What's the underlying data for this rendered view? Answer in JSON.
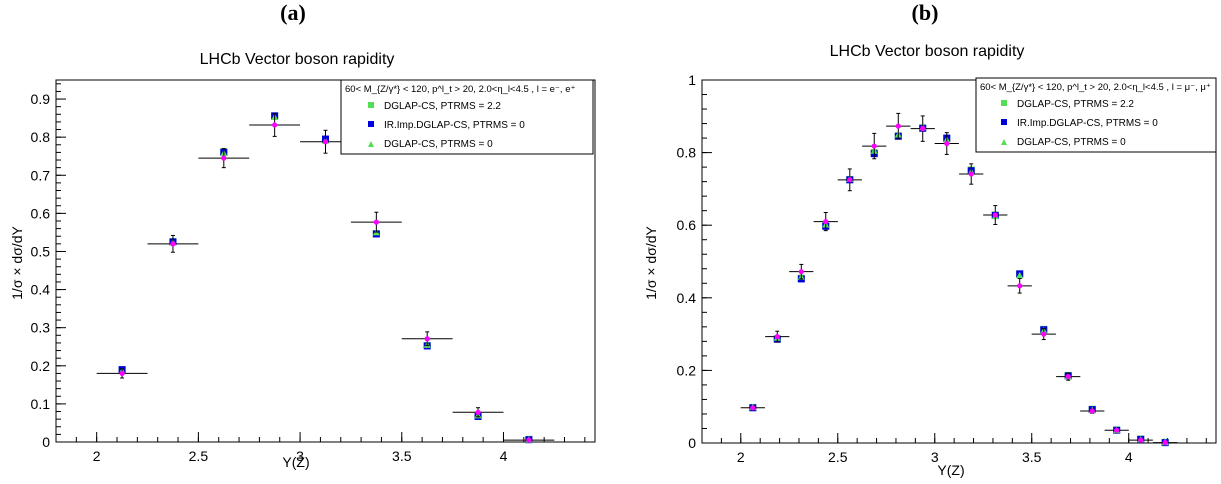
{
  "colors": {
    "data_marker": "#ff00ff",
    "dglap_ptrms22": "#55dd55",
    "ir_imp": "#0000dd",
    "dglap_ptrms0": "#55dd55",
    "axis": "#000000"
  },
  "chart_data": [
    {
      "type": "scatter",
      "panel_label": "(a)",
      "title": "LHCb Vector boson rapidity",
      "xlabel": "Y(Z)",
      "ylabel": "1/σ × dσ/dY",
      "xlim": [
        1.8,
        4.45
      ],
      "ylim": [
        0,
        0.95
      ],
      "xticks": [
        2,
        2.5,
        3,
        3.5,
        4
      ],
      "xticklabels": [
        "2",
        "2.5",
        "3",
        "3.5",
        "4"
      ],
      "yticks": [
        0,
        0.1,
        0.2,
        0.3,
        0.4,
        0.5,
        0.6,
        0.7,
        0.8,
        0.9
      ],
      "yticklabels": [
        "0",
        "0.1",
        "0.2",
        "0.3",
        "0.4",
        "0.5",
        "0.6",
        "0.7",
        "0.8",
        "0.9"
      ],
      "legend": {
        "header": "60< M_{Z/γ*} < 120, p^l_t > 20, 2.0<η_l<4.5 , l = e⁻, e⁺",
        "entries": [
          "DGLAP-CS, PTRMS = 2.2",
          "IR.Imp.DGLAP-CS, PTRMS = 0",
          "DGLAP-CS, PTRMS = 0"
        ],
        "placement": "top-right"
      },
      "data": {
        "x": [
          2.125,
          2.375,
          2.625,
          2.875,
          3.125,
          3.375,
          3.625,
          3.875,
          4.125
        ],
        "xerr": [
          0.125,
          0.125,
          0.125,
          0.125,
          0.125,
          0.125,
          0.125,
          0.125,
          0.125
        ],
        "y": [
          0.18,
          0.52,
          0.745,
          0.832,
          0.788,
          0.577,
          0.271,
          0.078,
          0.005
        ],
        "yerr": [
          0.012,
          0.022,
          0.025,
          0.03,
          0.03,
          0.026,
          0.018,
          0.012,
          0.003
        ]
      },
      "series": [
        {
          "name": "DGLAP-CS, PTRMS = 2.2",
          "marker": "square",
          "x": [
            2.125,
            2.375,
            2.625,
            2.875,
            3.125,
            3.375,
            3.625,
            3.875,
            4.125
          ],
          "y": [
            0.188,
            0.526,
            0.762,
            0.855,
            0.793,
            0.547,
            0.253,
            0.068,
            0.007
          ]
        },
        {
          "name": "IR.Imp.DGLAP-CS, PTRMS = 0",
          "marker": "square",
          "x": [
            2.125,
            2.375,
            2.625,
            2.875,
            3.125,
            3.375,
            3.625,
            3.875,
            4.125
          ],
          "y": [
            0.19,
            0.525,
            0.76,
            0.856,
            0.795,
            0.546,
            0.252,
            0.067,
            0.006
          ]
        },
        {
          "name": "DGLAP-CS, PTRMS = 0",
          "marker": "triangle",
          "x": [
            2.125,
            2.375,
            2.625,
            2.875,
            3.125,
            3.375,
            3.625,
            3.875,
            4.125
          ],
          "y": [
            0.186,
            0.524,
            0.758,
            0.853,
            0.791,
            0.55,
            0.255,
            0.07,
            0.006
          ]
        }
      ]
    },
    {
      "type": "scatter",
      "panel_label": "(b)",
      "title": "LHCb Vector boson rapidity",
      "xlabel": "Y(Z)",
      "ylabel": "1/σ × dσ/dY",
      "xlim": [
        1.8,
        4.45
      ],
      "ylim": [
        0,
        1.0
      ],
      "xticks": [
        2,
        2.5,
        3,
        3.5,
        4
      ],
      "xticklabels": [
        "2",
        "2.5",
        "3",
        "3.5",
        "4"
      ],
      "yticks": [
        0,
        0.2,
        0.4,
        0.6,
        0.8,
        1
      ],
      "yticklabels": [
        "0",
        "0.2",
        "0.4",
        "0.6",
        "0.8",
        "1"
      ],
      "legend": {
        "header": "60< M_{Z/γ*} < 120, p^l_t > 20, 2.0<η_l<4.5 , l = μ⁻, μ⁺",
        "entries": [
          "DGLAP-CS, PTRMS = 2.2",
          "IR.Imp.DGLAP-CS, PTRMS = 0",
          "DGLAP-CS, PTRMS = 0"
        ],
        "placement": "top-right"
      },
      "data": {
        "x": [
          2.062,
          2.188,
          2.312,
          2.438,
          2.562,
          2.688,
          2.812,
          2.938,
          3.062,
          3.188,
          3.312,
          3.438,
          3.562,
          3.688,
          3.812,
          3.938,
          4.062,
          4.188
        ],
        "xerr": [
          0.0625,
          0.0625,
          0.0625,
          0.0625,
          0.0625,
          0.0625,
          0.0625,
          0.0625,
          0.0625,
          0.0625,
          0.0625,
          0.0625,
          0.0625,
          0.0625,
          0.0625,
          0.0625,
          0.0625,
          0.0625
        ],
        "y": [
          0.097,
          0.293,
          0.472,
          0.61,
          0.725,
          0.818,
          0.873,
          0.866,
          0.825,
          0.741,
          0.628,
          0.433,
          0.3,
          0.183,
          0.088,
          0.035,
          0.008,
          0.001
        ],
        "yerr": [
          0.005,
          0.015,
          0.02,
          0.025,
          0.03,
          0.035,
          0.035,
          0.035,
          0.03,
          0.028,
          0.026,
          0.02,
          0.015,
          0.01,
          0.006,
          0.004,
          0.003,
          0.002
        ]
      },
      "series": [
        {
          "name": "DGLAP-CS, PTRMS = 2.2",
          "marker": "square",
          "x": [
            2.062,
            2.188,
            2.312,
            2.438,
            2.562,
            2.688,
            2.812,
            2.938,
            3.062,
            3.188,
            3.312,
            3.438,
            3.562,
            3.688,
            3.812,
            3.938,
            4.062,
            4.188
          ],
          "y": [
            0.098,
            0.287,
            0.454,
            0.598,
            0.726,
            0.8,
            0.846,
            0.868,
            0.838,
            0.752,
            0.628,
            0.465,
            0.313,
            0.186,
            0.093,
            0.036,
            0.011,
            0.002
          ]
        },
        {
          "name": "IR.Imp.DGLAP-CS, PTRMS = 0",
          "marker": "square",
          "x": [
            2.062,
            2.188,
            2.312,
            2.438,
            2.562,
            2.688,
            2.812,
            2.938,
            3.062,
            3.188,
            3.312,
            3.438,
            3.562,
            3.688,
            3.812,
            3.938,
            4.062,
            4.188
          ],
          "y": [
            0.097,
            0.286,
            0.452,
            0.597,
            0.725,
            0.797,
            0.845,
            0.867,
            0.84,
            0.75,
            0.627,
            0.466,
            0.312,
            0.185,
            0.092,
            0.035,
            0.01,
            0.001
          ]
        },
        {
          "name": "DGLAP-CS, PTRMS = 0",
          "marker": "triangle",
          "x": [
            2.062,
            2.188,
            2.312,
            2.438,
            2.562,
            2.688,
            2.812,
            2.938,
            3.062,
            3.188,
            3.312,
            3.438,
            3.562,
            3.688,
            3.812,
            3.938,
            4.062,
            4.188
          ],
          "y": [
            0.099,
            0.29,
            0.458,
            0.602,
            0.728,
            0.805,
            0.85,
            0.87,
            0.836,
            0.748,
            0.625,
            0.462,
            0.31,
            0.184,
            0.091,
            0.035,
            0.01,
            0.002
          ]
        }
      ]
    }
  ]
}
